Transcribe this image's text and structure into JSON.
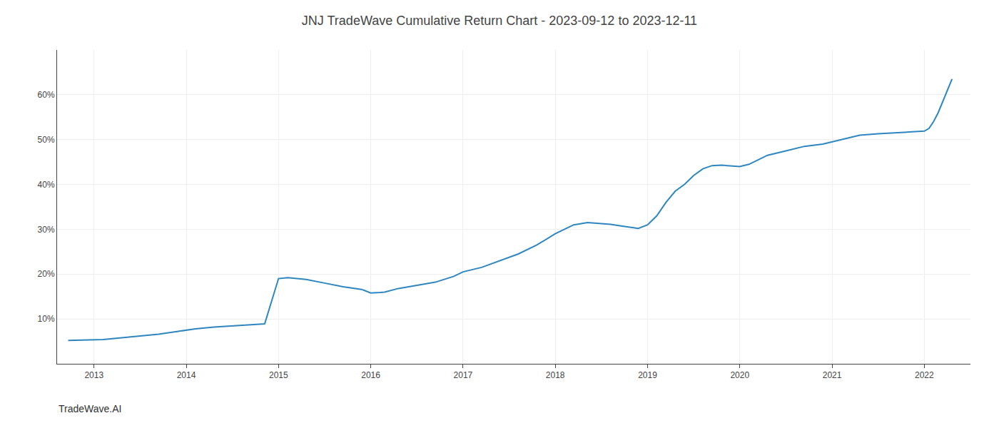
{
  "chart_data": {
    "type": "line",
    "title": "JNJ TradeWave Cumulative Return Chart - 2023-09-12 to 2023-12-11",
    "annotations": [
      "TradeWave.AI"
    ],
    "x": [
      2012.72,
      2013.0,
      2013.1,
      2013.2,
      2013.3,
      2013.5,
      2013.7,
      2013.9,
      2014.0,
      2014.1,
      2014.3,
      2014.5,
      2014.7,
      2014.85,
      2015.0,
      2015.1,
      2015.2,
      2015.3,
      2015.5,
      2015.7,
      2015.9,
      2016.0,
      2016.1,
      2016.15,
      2016.3,
      2016.5,
      2016.7,
      2016.9,
      2017.0,
      2017.2,
      2017.4,
      2017.6,
      2017.8,
      2018.0,
      2018.1,
      2018.2,
      2018.35,
      2018.5,
      2018.6,
      2018.7,
      2018.8,
      2018.9,
      2019.0,
      2019.1,
      2019.2,
      2019.3,
      2019.4,
      2019.5,
      2019.6,
      2019.7,
      2019.8,
      2019.9,
      2020.0,
      2020.1,
      2020.2,
      2020.3,
      2020.5,
      2020.7,
      2020.9,
      2021.0,
      2021.1,
      2021.2,
      2021.3,
      2021.5,
      2021.65,
      2021.75,
      2021.85,
      2021.95,
      2022.0,
      2022.05,
      2022.1,
      2022.15,
      2022.2,
      2022.25,
      2022.3
    ],
    "values": [
      5.2,
      5.3,
      5.4,
      5.6,
      5.8,
      6.2,
      6.6,
      7.2,
      7.5,
      7.8,
      8.2,
      8.5,
      8.7,
      8.9,
      19.0,
      19.2,
      19.0,
      18.8,
      18.0,
      17.2,
      16.6,
      15.8,
      15.9,
      16.0,
      16.8,
      17.5,
      18.2,
      19.5,
      20.5,
      21.5,
      23.0,
      24.5,
      26.5,
      29.0,
      30.0,
      31.0,
      31.5,
      31.3,
      31.1,
      30.8,
      30.5,
      30.2,
      31.0,
      33.0,
      36.0,
      38.5,
      40.0,
      42.0,
      43.5,
      44.2,
      44.3,
      44.2,
      44.0,
      44.5,
      45.5,
      46.5,
      47.5,
      48.5,
      49.0,
      49.5,
      50.0,
      50.5,
      51.0,
      51.3,
      51.5,
      51.6,
      51.7,
      51.8,
      51.9,
      52.5,
      54.0,
      56.0,
      58.5,
      61.0,
      63.5
    ],
    "color": "#2e86c1",
    "xlim": [
      2012.6,
      2022.5
    ],
    "ylim": [
      0,
      70
    ],
    "xticks": [
      2013,
      2014,
      2015,
      2016,
      2017,
      2018,
      2019,
      2020,
      2021,
      2022
    ],
    "yticks": [
      {
        "value": 10,
        "label": "10%"
      },
      {
        "value": 20,
        "label": "20%"
      },
      {
        "value": 30,
        "label": "30%"
      },
      {
        "value": 40,
        "label": "40%"
      },
      {
        "value": 50,
        "label": "50%"
      },
      {
        "value": 60,
        "label": "60%"
      }
    ],
    "grid": true
  }
}
